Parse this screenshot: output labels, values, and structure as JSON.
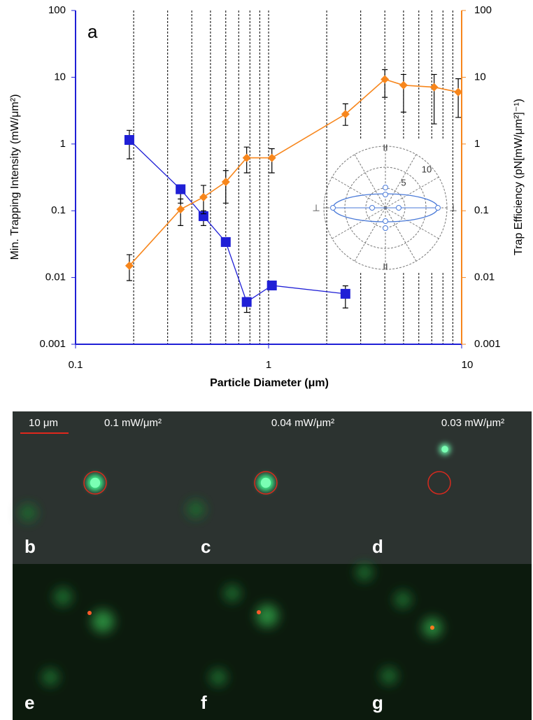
{
  "chart_data": {
    "type": "line",
    "panel_label": "a",
    "xlabel": "Particle Diameter (μm)",
    "ylabel": "Min. Trapping Intensity (mW/μm²)",
    "y2label": "Trap Efficiency (pN[mW/μm²]⁻¹)",
    "log_x": true,
    "log_y": true,
    "xlim": [
      0.1,
      10
    ],
    "xticks": [
      0.1,
      1,
      10
    ],
    "xgrid": [
      0.2,
      0.3,
      0.4,
      0.5,
      0.6,
      0.7,
      0.8,
      0.9,
      1,
      2,
      3,
      4,
      5,
      6,
      7,
      8,
      9
    ],
    "ylim": [
      0.001,
      100
    ],
    "yticks": [
      0.001,
      0.01,
      0.1,
      1,
      10,
      100
    ],
    "y2lim": [
      0.001,
      100
    ],
    "y2ticks": [
      0.001,
      0.01,
      0.1,
      1,
      10,
      100
    ],
    "series": [
      {
        "color": "#1f1fd6",
        "marker": "square",
        "x": [
          0.19,
          0.35,
          0.46,
          0.6,
          0.77,
          1.04,
          2.5
        ],
        "values": [
          1.15,
          0.21,
          0.083,
          0.034,
          0.0043,
          0.0076,
          0.0057
        ],
        "err_low": [
          0.6,
          0.13,
          0.06,
          null,
          0.003,
          null,
          0.0035
        ],
        "err_high": [
          1.6,
          0.22,
          0.1,
          null,
          0.005,
          null,
          0.0075
        ]
      },
      {
        "color": "#f7861c",
        "marker": "diamond",
        "axis": "y2",
        "x": [
          0.19,
          0.35,
          0.46,
          0.6,
          0.77,
          1.04,
          2.5,
          4.0,
          5.0,
          7.2,
          9.6
        ],
        "values": [
          0.015,
          0.105,
          0.16,
          0.27,
          0.62,
          0.62,
          2.8,
          9.3,
          7.6,
          7.1,
          6.0
        ],
        "err_low": [
          0.009,
          0.06,
          0.09,
          0.13,
          0.37,
          0.37,
          1.9,
          5,
          3,
          2,
          2.5
        ],
        "err_high": [
          0.022,
          0.15,
          0.24,
          0.4,
          0.9,
          0.85,
          4.0,
          13,
          11,
          11,
          9.5
        ]
      }
    ],
    "inset_labels": [
      "10",
      "5",
      "II",
      "II",
      "⊥",
      "⊥"
    ]
  },
  "scale_bar": "10 μm",
  "panels": [
    {
      "label": "b",
      "intensity": "0.1 mW/μm²"
    },
    {
      "label": "c",
      "intensity": "0.04 mW/μm²"
    },
    {
      "label": "d",
      "intensity": "0.03 mW/μm²"
    },
    {
      "label": "e"
    },
    {
      "label": "f"
    },
    {
      "label": "g"
    }
  ]
}
